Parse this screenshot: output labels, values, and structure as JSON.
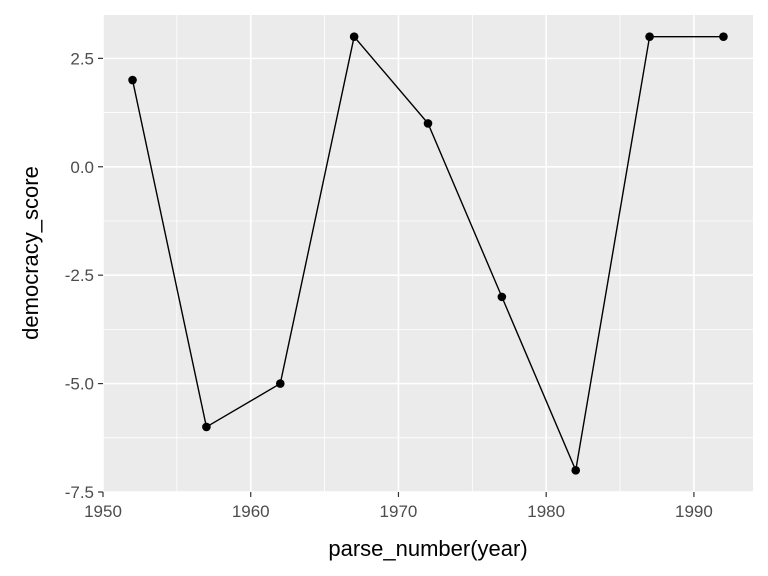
{
  "chart_data": {
    "type": "line",
    "title": "",
    "xlabel": "parse_number(year)",
    "ylabel": "democracy_score",
    "xlim": [
      1950,
      1994
    ],
    "ylim": [
      -7.5,
      3.5
    ],
    "x_ticks": [
      1950,
      1960,
      1970,
      1980,
      1990
    ],
    "x_tick_labels": [
      "1950",
      "1960",
      "1970",
      "1980",
      "1990"
    ],
    "y_ticks": [
      -7.5,
      -5.0,
      -2.5,
      0.0,
      2.5
    ],
    "y_tick_labels": [
      "-7.5",
      "-5.0",
      "-2.5",
      "0.0",
      "2.5"
    ],
    "grid": true,
    "series": [
      {
        "x": [
          1952,
          1957,
          1962,
          1967,
          1972,
          1977,
          1982,
          1987,
          1992
        ],
        "y": [
          2,
          -6,
          -5,
          3,
          1,
          -3,
          -7,
          3,
          3
        ],
        "color": "#000000",
        "markers": true
      }
    ],
    "panel_color": "#ebebeb",
    "grid_color": "#ffffff"
  }
}
